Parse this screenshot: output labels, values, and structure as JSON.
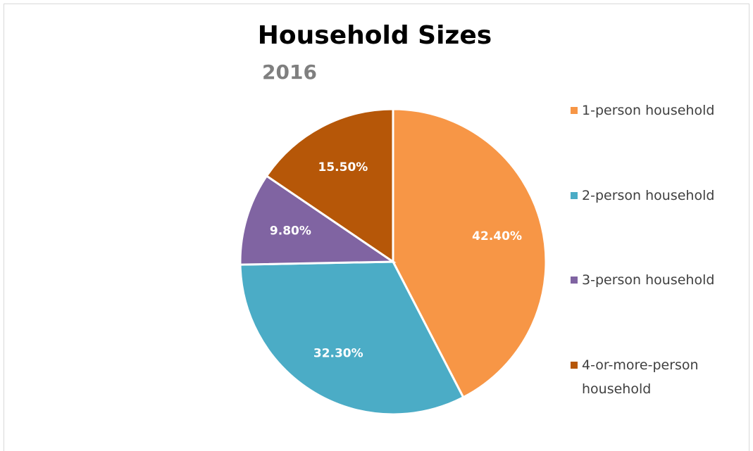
{
  "chart_data": {
    "type": "pie",
    "title": "Household Sizes",
    "subtitle": "2016",
    "categories": [
      "1-person household",
      "2-person household",
      "3-person household",
      "4-or-more-person household"
    ],
    "values": [
      42.4,
      32.3,
      9.8,
      15.5
    ],
    "value_labels": [
      "42.40%",
      "32.30%",
      "9.80%",
      "15.50%"
    ],
    "colors": [
      "#f79646",
      "#4bacc6",
      "#8064a2",
      "#b65708"
    ],
    "legend": "right"
  }
}
